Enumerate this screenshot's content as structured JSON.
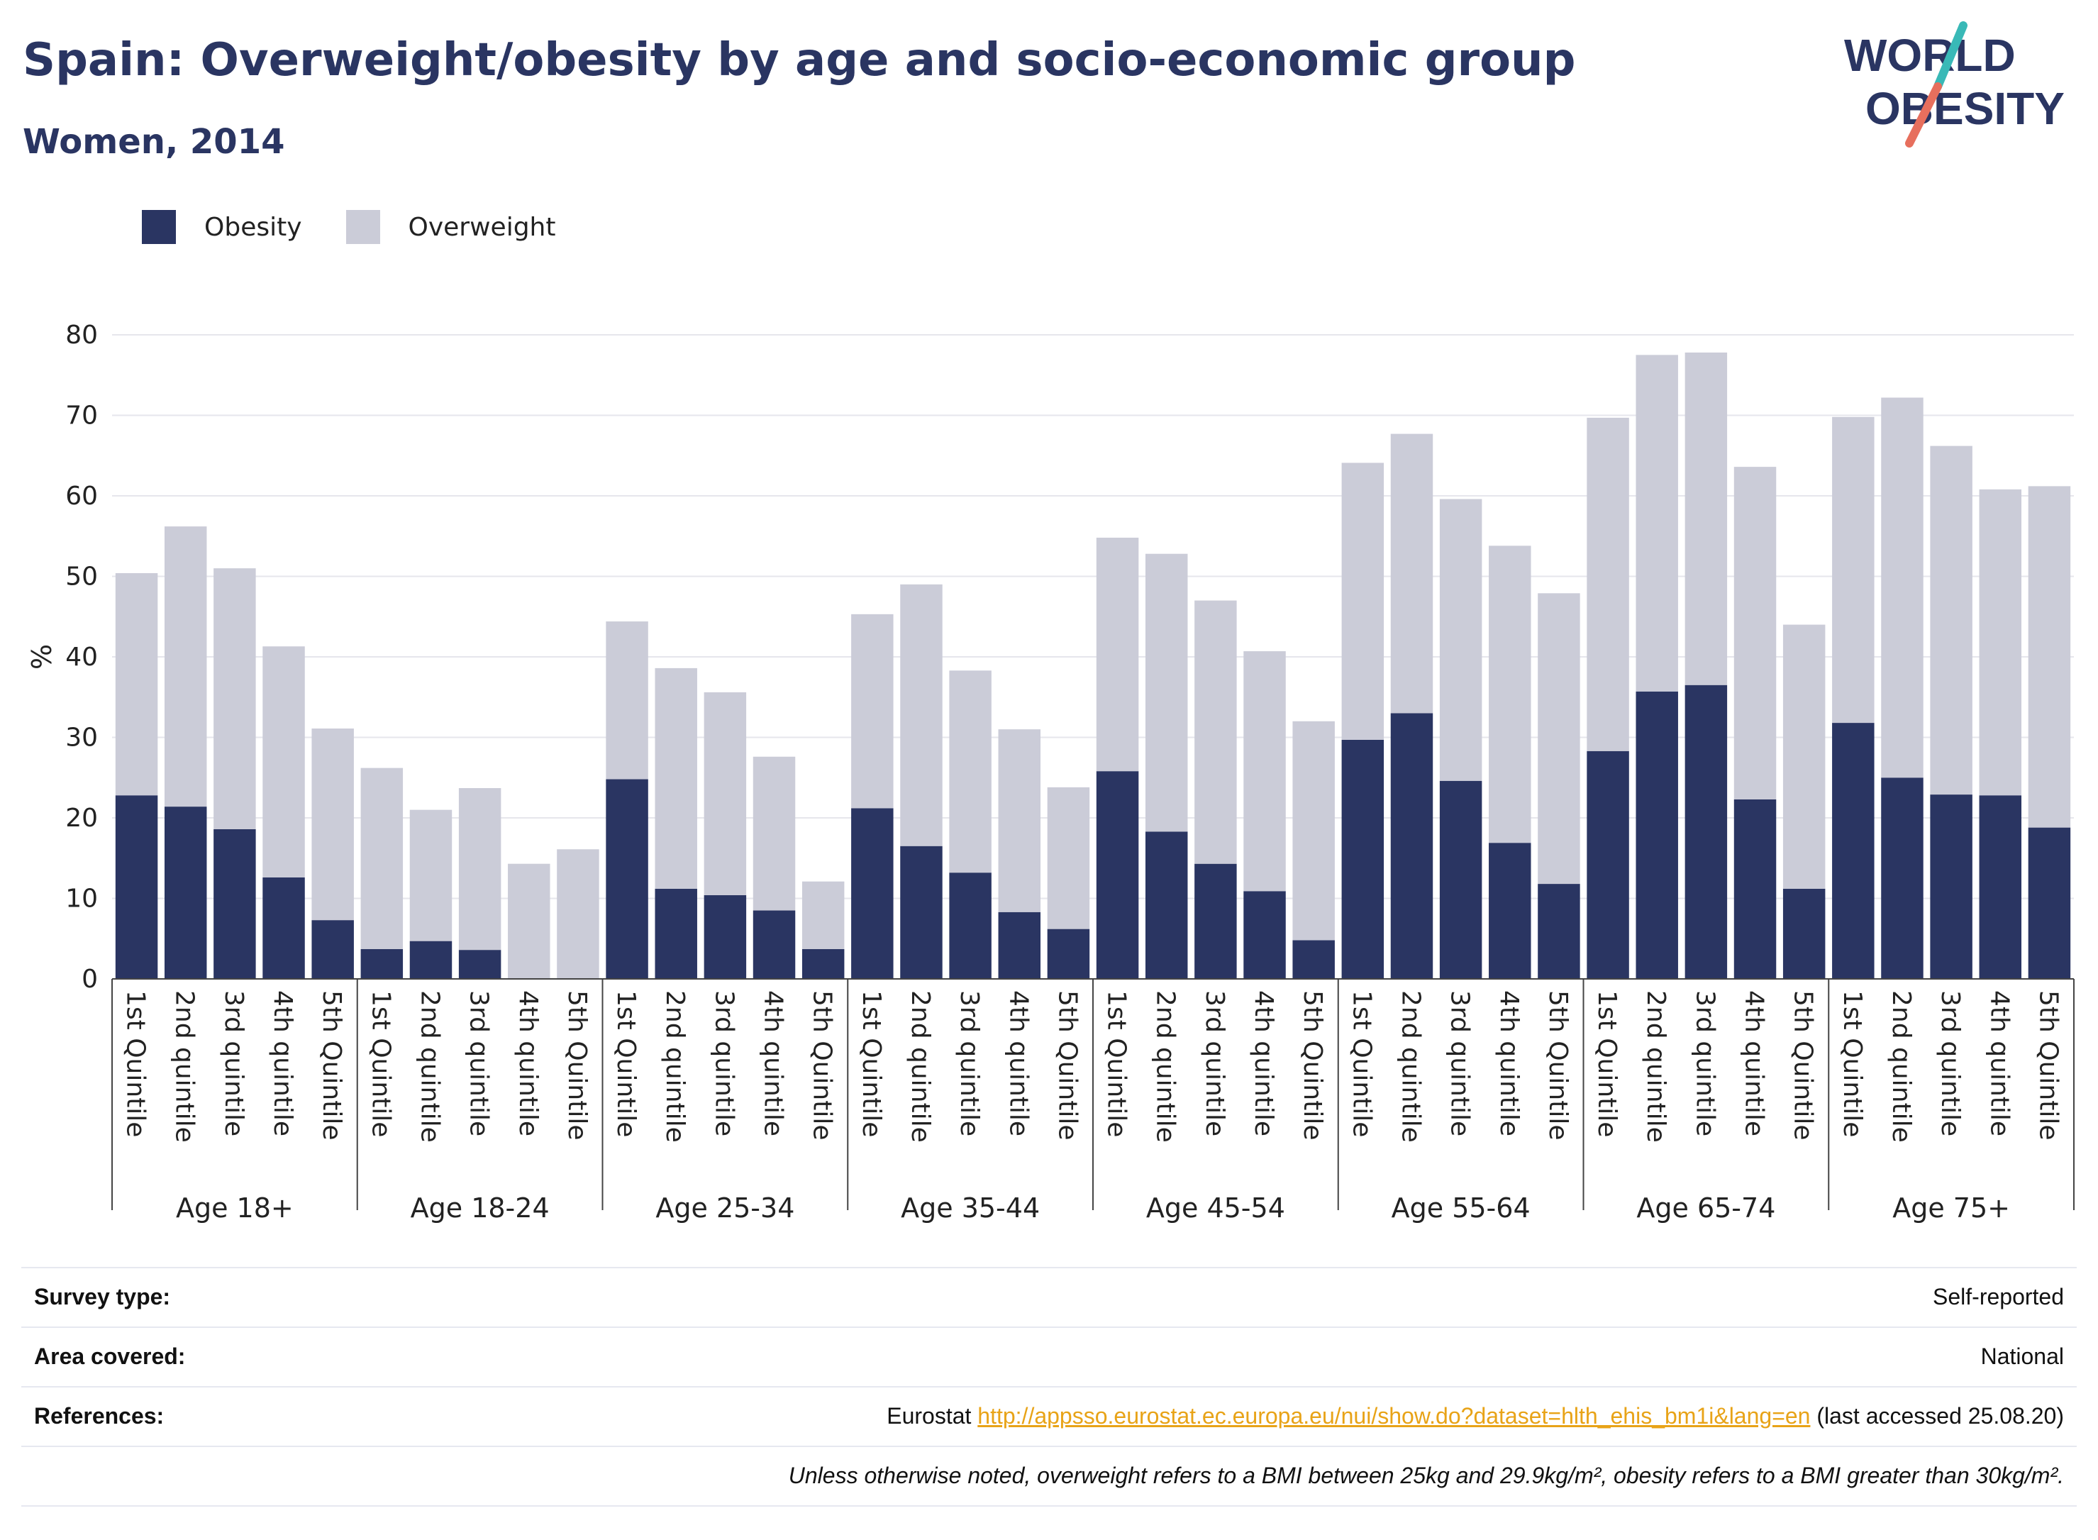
{
  "header": {
    "title": "Spain: Overweight/obesity by age and socio-economic group",
    "subtitle": "Women, 2014",
    "logo_line1": "WORLD",
    "logo_line2": "OBESITY"
  },
  "legend": {
    "obesity": "Obesity",
    "overweight": "Overweight"
  },
  "colors": {
    "obesity": "#2a3562",
    "overweight": "#cbccd8",
    "accent_teal": "#39b9b7",
    "accent_red": "#e76f5d",
    "link": "#e8a317"
  },
  "chart_data": {
    "type": "bar",
    "stacked": true,
    "ylabel": "%",
    "ylim": [
      0,
      80
    ],
    "yticks": [
      0,
      10,
      20,
      30,
      40,
      50,
      60,
      70,
      80
    ],
    "grid": true,
    "groups": [
      {
        "label": "Age 18+",
        "categories": [
          "1st Quintile",
          "2nd quintile",
          "3rd quintile",
          "4th quintile",
          "5th Quintile"
        ],
        "obesity": [
          22.8,
          21.4,
          18.6,
          12.6,
          7.3
        ],
        "overweight": [
          27.6,
          34.8,
          32.4,
          28.7,
          23.8
        ]
      },
      {
        "label": "Age 18-24",
        "categories": [
          "1st Quintile",
          "2nd quintile",
          "3rd quintile",
          "4th quintile",
          "5th Quintile"
        ],
        "obesity": [
          3.7,
          4.7,
          3.6,
          0,
          0
        ],
        "overweight": [
          22.5,
          16.3,
          20.1,
          14.3,
          16.1
        ]
      },
      {
        "label": "Age 25-34",
        "categories": [
          "1st Quintile",
          "2nd quintile",
          "3rd quintile",
          "4th quintile",
          "5th Quintile"
        ],
        "obesity": [
          24.8,
          11.2,
          10.4,
          8.5,
          3.7
        ],
        "overweight": [
          19.6,
          27.4,
          25.2,
          19.1,
          8.4
        ]
      },
      {
        "label": "Age 35-44",
        "categories": [
          "1st Quintile",
          "2nd quintile",
          "3rd quintile",
          "4th quintile",
          "5th Quintile"
        ],
        "obesity": [
          21.2,
          16.5,
          13.2,
          8.3,
          6.2
        ],
        "overweight": [
          24.1,
          32.5,
          25.1,
          22.7,
          17.6
        ]
      },
      {
        "label": "Age 45-54",
        "categories": [
          "1st Quintile",
          "2nd quintile",
          "3rd quintile",
          "4th quintile",
          "5th Quintile"
        ],
        "obesity": [
          25.8,
          18.3,
          14.3,
          10.9,
          4.8
        ],
        "overweight": [
          29.0,
          34.5,
          32.7,
          29.8,
          27.2
        ]
      },
      {
        "label": "Age 55-64",
        "categories": [
          "1st Quintile",
          "2nd quintile",
          "3rd quintile",
          "4th quintile",
          "5th Quintile"
        ],
        "obesity": [
          29.7,
          33.0,
          24.6,
          16.9,
          11.8
        ],
        "overweight": [
          34.4,
          34.7,
          35.0,
          36.9,
          36.1
        ]
      },
      {
        "label": "Age 65-74",
        "categories": [
          "1st Quintile",
          "2nd quintile",
          "3rd quintile",
          "4th quintile",
          "5th Quintile"
        ],
        "obesity": [
          28.3,
          35.7,
          36.5,
          22.3,
          11.2
        ],
        "overweight": [
          41.4,
          41.8,
          41.3,
          41.3,
          32.8
        ]
      },
      {
        "label": "Age 75+",
        "categories": [
          "1st Quintile",
          "2nd quintile",
          "3rd quintile",
          "4th quintile",
          "5th Quintile"
        ],
        "obesity": [
          31.8,
          25.0,
          22.9,
          22.8,
          18.8
        ],
        "overweight": [
          38.0,
          47.2,
          43.3,
          38.0,
          42.4
        ]
      }
    ]
  },
  "info": {
    "survey_label": "Survey type:",
    "survey_value": "Self-reported",
    "area_label": "Area covered:",
    "area_value": "National",
    "references_label": "References:",
    "references_prefix": "Eurostat ",
    "references_link": "http://appsso.eurostat.ec.europa.eu/nui/show.do?dataset=hlth_ehis_bm1i&lang=en",
    "references_suffix": " (last accessed 25.08.20)",
    "note": "Unless otherwise noted, overweight refers to a BMI between 25kg and 29.9kg/m², obesity refers to a BMI greater than 30kg/m²."
  }
}
